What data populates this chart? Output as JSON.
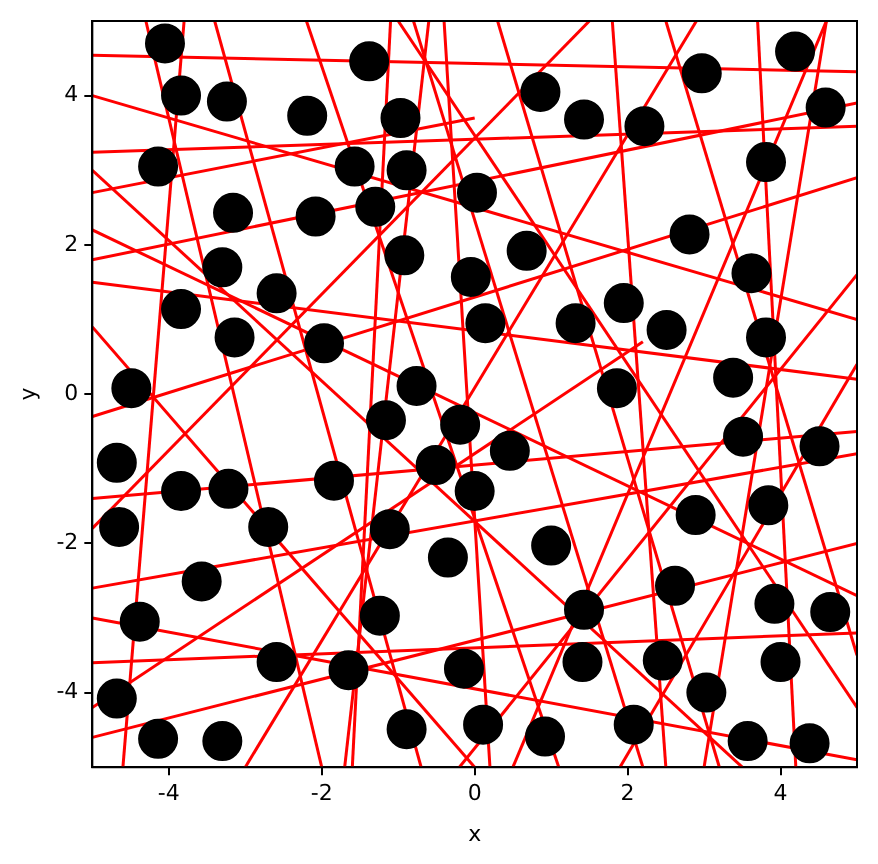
{
  "chart_data": {
    "type": "scatter",
    "xlabel": "x",
    "ylabel": "y",
    "xlim": [
      -5,
      5
    ],
    "ylim": [
      -5,
      5
    ],
    "xticks": [
      -4,
      -2,
      0,
      2,
      4
    ],
    "yticks": [
      -4,
      -2,
      0,
      2,
      4
    ],
    "grid": false,
    "legend": false,
    "series": [
      {
        "color": "#000000",
        "marker": "circle",
        "x": [
          -4.05,
          -3.84,
          -3.24,
          -2.19,
          -1.38,
          -0.97,
          -4.14,
          -1.57,
          -0.89,
          0.03,
          -3.16,
          -2.08,
          -1.3,
          -0.92,
          -3.3,
          0.86,
          1.43,
          2.22,
          2.97,
          4.19,
          4.59,
          3.81,
          0.68,
          2.81,
          3.62,
          -3.84,
          -2.59,
          -3.14,
          -1.97,
          -4.49,
          -0.76,
          -1.16,
          -0.19,
          -4.68,
          -0.51,
          -3.84,
          -3.22,
          -1.84,
          0,
          -0.05,
          0.14,
          1.32,
          1.95,
          2.51,
          3.81,
          3.38,
          1.86,
          3.51,
          4.51,
          0.46,
          2.89,
          3.84,
          -4.65,
          -2.7,
          -3.57,
          -1.11,
          -0.35,
          -4.38,
          -1.24,
          -2.59,
          -1.65,
          -0.14,
          -4.68,
          -4.14,
          -3.3,
          -0.89,
          1.0,
          2.62,
          1.43,
          3.92,
          4.65,
          1.41,
          2.46,
          4.0,
          3.03,
          0.11,
          0.92,
          2.08,
          3.57,
          4.38
        ],
        "values": [
          4.7,
          4.0,
          3.92,
          3.73,
          4.46,
          3.7,
          3.05,
          3.05,
          3.0,
          2.7,
          2.43,
          2.38,
          2.51,
          1.86,
          1.7,
          4.05,
          3.68,
          3.59,
          4.3,
          4.59,
          3.84,
          3.11,
          1.92,
          2.14,
          1.62,
          1.14,
          1.35,
          0.76,
          0.68,
          0.08,
          0.11,
          -0.35,
          -0.41,
          -0.92,
          -0.95,
          -1.3,
          -1.27,
          -1.16,
          -1.3,
          1.57,
          0.95,
          0.95,
          1.22,
          0.86,
          0.76,
          0.22,
          0.08,
          -0.57,
          -0.7,
          -0.76,
          -1.62,
          -1.49,
          -1.78,
          -1.78,
          -2.51,
          -1.81,
          -2.19,
          -3.05,
          -2.97,
          -3.59,
          -3.7,
          -3.68,
          -4.08,
          -4.62,
          -4.65,
          -4.49,
          -2.03,
          -2.57,
          -2.89,
          -2.81,
          -2.92,
          -3.59,
          -3.57,
          -3.59,
          -4.0,
          -4.43,
          -4.59,
          -4.43,
          -4.65,
          -4.68
        ]
      },
      {
        "type": "line",
        "color": "#ff0000",
        "x": [
          -5,
          5
        ],
        "values": [
          4.54,
          4.32
        ]
      },
      {
        "type": "line",
        "color": "#ff0000",
        "x": [
          -5,
          5
        ],
        "values": [
          3.24,
          3.59
        ]
      },
      {
        "type": "line",
        "color": "#ff0000",
        "x": [
          -5,
          0
        ],
        "values": [
          2.7,
          3.7
        ]
      },
      {
        "type": "line",
        "color": "#ff0000",
        "x": [
          -5,
          5
        ],
        "values": [
          1.5,
          0.2
        ]
      },
      {
        "type": "line",
        "color": "#ff0000",
        "x": [
          -5,
          5
        ],
        "values": [
          -0.3,
          2.9
        ]
      },
      {
        "type": "line",
        "color": "#ff0000",
        "x": [
          -5,
          5
        ],
        "values": [
          -1.4,
          -0.5
        ]
      },
      {
        "type": "line",
        "color": "#ff0000",
        "x": [
          -5,
          5
        ],
        "values": [
          -2.6,
          -0.8
        ]
      },
      {
        "type": "line",
        "color": "#ff0000",
        "x": [
          -5,
          5
        ],
        "values": [
          -3.6,
          -3.2
        ]
      },
      {
        "type": "line",
        "color": "#ff0000",
        "x": [
          -5,
          5
        ],
        "values": [
          -4.6,
          -2.0
        ]
      },
      {
        "type": "line",
        "color": "#ff0000",
        "x": [
          -5,
          2.2
        ],
        "values": [
          -4.2,
          0.7
        ]
      },
      {
        "type": "line",
        "color": "#ff0000",
        "x": [
          -5,
          5
        ],
        "values": [
          2.2,
          -2.7
        ]
      },
      {
        "type": "line",
        "color": "#ff0000",
        "x": [
          -5,
          3.5
        ],
        "values": [
          3.0,
          -5
        ]
      },
      {
        "type": "line",
        "color": "#ff0000",
        "x": [
          -5,
          0
        ],
        "values": [
          0.9,
          -5
        ]
      },
      {
        "type": "line",
        "color": "#ff0000",
        "x": [
          -4.3,
          -2.0
        ],
        "values": [
          5,
          -5
        ]
      },
      {
        "type": "line",
        "color": "#ff0000",
        "x": [
          -3.4,
          -0.7
        ],
        "values": [
          5,
          -5
        ]
      },
      {
        "type": "line",
        "color": "#ff0000",
        "x": [
          -1.7,
          -0.6
        ],
        "values": [
          -5,
          5
        ]
      },
      {
        "type": "line",
        "color": "#ff0000",
        "x": [
          -1.1,
          -1.6
        ],
        "values": [
          5,
          -5
        ]
      },
      {
        "type": "line",
        "color": "#ff0000",
        "x": [
          -0.8,
          2.2
        ],
        "values": [
          5,
          -5
        ]
      },
      {
        "type": "line",
        "color": "#ff0000",
        "x": [
          -2.2,
          1.1
        ],
        "values": [
          5,
          -5
        ]
      },
      {
        "type": "line",
        "color": "#ff0000",
        "x": [
          0.3,
          3.2
        ],
        "values": [
          5,
          -5
        ]
      },
      {
        "type": "line",
        "color": "#ff0000",
        "x": [
          0.5,
          4.6
        ],
        "values": [
          -5,
          5
        ]
      },
      {
        "type": "line",
        "color": "#ff0000",
        "x": [
          1.8,
          2.5
        ],
        "values": [
          5,
          -5
        ]
      },
      {
        "type": "line",
        "color": "#ff0000",
        "x": [
          3.7,
          4.2
        ],
        "values": [
          5,
          -5
        ]
      },
      {
        "type": "line",
        "color": "#ff0000",
        "x": [
          2.5,
          5
        ],
        "values": [
          5,
          -3.5
        ]
      },
      {
        "type": "line",
        "color": "#ff0000",
        "x": [
          -0.2,
          5
        ],
        "values": [
          -5,
          1.6
        ]
      },
      {
        "type": "line",
        "color": "#ff0000",
        "x": [
          -5,
          5
        ],
        "values": [
          4.0,
          1.0
        ]
      },
      {
        "type": "line",
        "color": "#ff0000",
        "x": [
          -3.0,
          2.9
        ],
        "values": [
          -5,
          5
        ]
      },
      {
        "type": "line",
        "color": "#ff0000",
        "x": [
          -5,
          1.5
        ],
        "values": [
          -1.8,
          5
        ]
      },
      {
        "type": "line",
        "color": "#ff0000",
        "x": [
          1.9,
          5
        ],
        "values": [
          -5,
          0.4
        ]
      },
      {
        "type": "line",
        "color": "#ff0000",
        "x": [
          -1.0,
          5
        ],
        "values": [
          5,
          -4.2
        ]
      },
      {
        "type": "line",
        "color": "#ff0000",
        "x": [
          -5,
          5
        ],
        "values": [
          -3.0,
          -4.9
        ]
      },
      {
        "type": "line",
        "color": "#ff0000",
        "x": [
          -0.4,
          0.2
        ],
        "values": [
          5,
          -5
        ]
      },
      {
        "type": "line",
        "color": "#ff0000",
        "x": [
          4.6,
          3.0
        ],
        "values": [
          5,
          -5
        ]
      },
      {
        "type": "line",
        "color": "#ff0000",
        "x": [
          -5,
          5
        ],
        "values": [
          1.8,
          3.9
        ]
      },
      {
        "type": "line",
        "color": "#ff0000",
        "x": [
          -4.6,
          -3.8
        ],
        "values": [
          -5,
          5
        ]
      }
    ]
  }
}
